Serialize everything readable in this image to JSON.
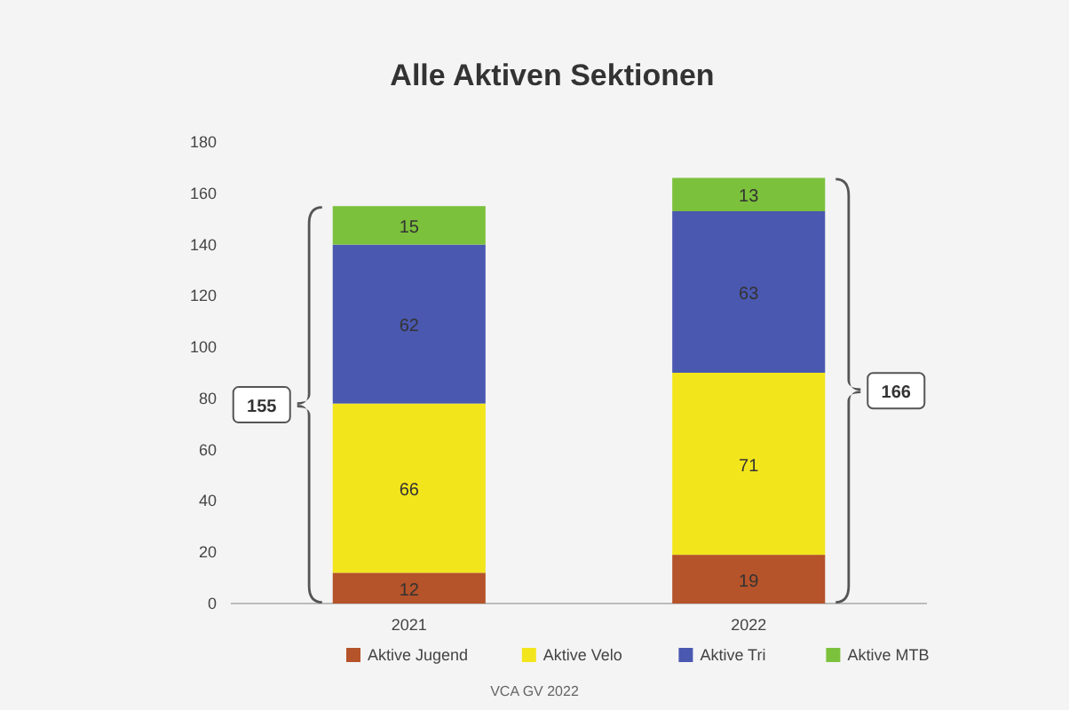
{
  "chart_data": {
    "type": "bar",
    "title": "Alle Aktiven Sektionen",
    "categories": [
      "2021",
      "2022"
    ],
    "stacked": true,
    "data_labels": true,
    "series": [
      {
        "name": "Aktive Jugend",
        "color": "#b5532a",
        "values": [
          12,
          19
        ]
      },
      {
        "name": "Aktive Velo",
        "color": "#f3e51c",
        "values": [
          66,
          71
        ]
      },
      {
        "name": "Aktive Tri",
        "color": "#4a58b0",
        "values": [
          62,
          63
        ]
      },
      {
        "name": "Aktive MTB",
        "color": "#7cc13c",
        "values": [
          15,
          13
        ]
      }
    ],
    "totals": [
      "155",
      "166"
    ],
    "ylim": [
      0,
      180
    ],
    "yticks": [
      0,
      20,
      40,
      60,
      80,
      100,
      120,
      140,
      160,
      180
    ],
    "legend": "bottom",
    "annotations": [
      "VCA GV 2022"
    ]
  }
}
